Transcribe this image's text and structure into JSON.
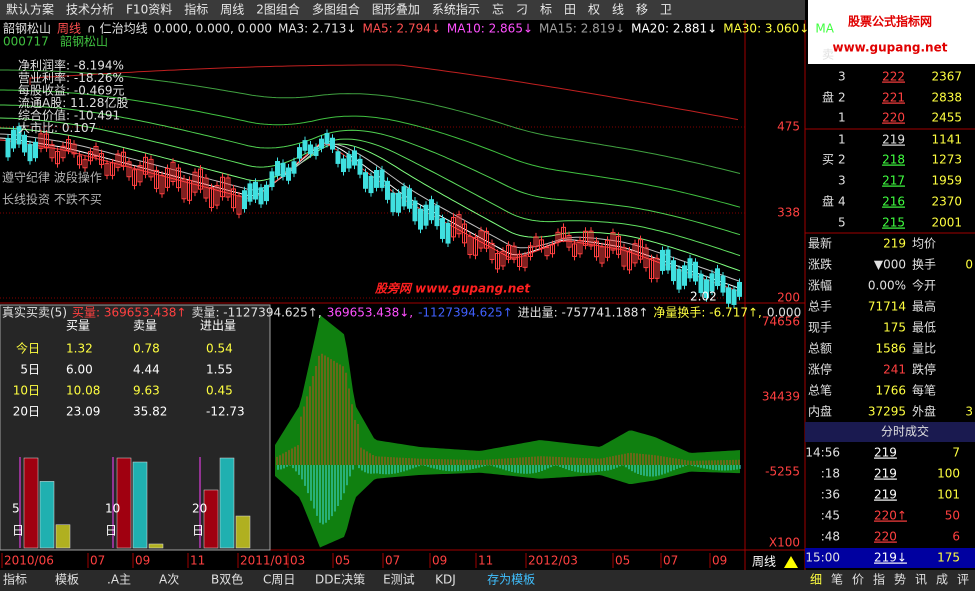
{
  "toolbar": [
    "默认方案",
    "技术分析",
    "F10资料",
    "指标",
    "周线",
    "2图组合",
    "多图组合",
    "图形叠加",
    "系统指示",
    "忘",
    "刁",
    "标",
    "田",
    "权",
    "线",
    "移",
    "卫"
  ],
  "watermark": {
    "title": "股票公式指标网",
    "url": "www.gupang.net"
  },
  "main_chart": {
    "header": [
      {
        "text": "韶钢松山",
        "color": "#e0e0e0"
      },
      {
        "text": "周线",
        "color": "#ff5050"
      },
      {
        "text": "∩ 仁治均线",
        "color": "#e0e0e0"
      },
      {
        "text": "0.000, 0.000, 0.000",
        "color": "#e0e0e0"
      },
      {
        "text": "MA3: 2.713↓",
        "color": "#e0e0e0"
      },
      {
        "text": "MA5: 2.794↓",
        "color": "#ff5050"
      },
      {
        "text": "MA10: 2.865↓",
        "color": "#ff50ff"
      },
      {
        "text": "MA15: 2.819↓",
        "color": "#a0a0a0"
      },
      {
        "text": "MA20: 2.881↓",
        "color": "#ffffff"
      },
      {
        "text": "MA30: 3.060↓",
        "color": "#ffff40"
      },
      {
        "text": "MA",
        "color": "#40ff40"
      }
    ],
    "code": "000717",
    "name": "韶钢松山",
    "fundamentals": [
      "净利润率: -8.194%",
      "营业利率: -18.26%",
      "每股收益: -0.469元",
      "流通A股: 11.28亿股",
      "综合价值: -10.491",
      "大市比: 0.107"
    ],
    "slogans": [
      "遵守纪律 波段操作",
      "长线投资 不跌不买"
    ],
    "price_axis": [
      "475",
      "338",
      "200"
    ],
    "last_price": "2.02"
  },
  "indicator_panel": {
    "header": [
      {
        "text": "真实买卖(5)",
        "color": "#e0e0e0"
      },
      {
        "text": "买量: 369653.438↑",
        "color": "#ff4040"
      },
      {
        "text": "卖量: -1127394.625↑,",
        "color": "#e0e0e0"
      },
      {
        "text": "369653.438↓,",
        "color": "#ff50ff"
      },
      {
        "text": "-1127394.625↑",
        "color": "#4060ff"
      },
      {
        "text": "进出量: -757741.188↑",
        "color": "#e0e0e0"
      },
      {
        "text": "净量换手: -6.717↑,",
        "color": "#ffff40"
      },
      {
        "text": "0.000",
        "color": "#e0e0e0"
      }
    ],
    "axis": [
      "74656",
      "34439",
      "-5255",
      "X100"
    ],
    "table": {
      "headers": [
        "买量",
        "卖量",
        "进出量"
      ],
      "rows": [
        [
          "今日",
          "1.32",
          "0.78",
          "0.54"
        ],
        [
          "5日",
          "6.00",
          "4.44",
          "1.55"
        ],
        [
          "10日",
          "10.08",
          "9.63",
          "0.45"
        ],
        [
          "20日",
          "23.09",
          "35.82",
          "-12.73"
        ]
      ]
    },
    "bar_labels": [
      [
        "5",
        "日"
      ],
      [
        "10",
        "日"
      ],
      [
        "20",
        "日"
      ]
    ],
    "watermark": "股旁网 www.gupang.net"
  },
  "date_axis": [
    "2010/06",
    "07",
    "09",
    "11",
    "2011/01",
    "03",
    "05",
    "07",
    "09",
    "11",
    "2012/03",
    "05",
    "07",
    "09"
  ],
  "period_button": "周线",
  "bottom_tabs": [
    "指标",
    "模板",
    ".A主",
    "A次",
    "B双色",
    "C周日",
    "DDE决策",
    "E测试",
    "KDJ",
    "存为模板"
  ],
  "order_book": {
    "sell_label": [
      "卖",
      "盘"
    ],
    "sell": [
      [
        "3",
        "222",
        "2367"
      ],
      [
        "2",
        "221",
        "2838"
      ],
      [
        "1",
        "220",
        "2455"
      ]
    ],
    "buy_label": [
      "买",
      "盘"
    ],
    "buy": [
      [
        "1",
        "219",
        "1141"
      ],
      [
        "2",
        "218",
        "1273"
      ],
      [
        "3",
        "217",
        "1959"
      ],
      [
        "4",
        "216",
        "2370"
      ],
      [
        "5",
        "215",
        "2001"
      ]
    ]
  },
  "stats": [
    [
      "最新",
      "219",
      "均价",
      ""
    ],
    [
      "涨跌",
      "▼000",
      "换手",
      "0"
    ],
    [
      "涨幅",
      "0.00%",
      "今开",
      ""
    ],
    [
      "总手",
      "71714",
      "最高",
      ""
    ],
    [
      "现手",
      "175",
      "最低",
      ""
    ],
    [
      "总额",
      "1586",
      "量比",
      ""
    ],
    [
      "涨停",
      "241",
      "跌停",
      ""
    ],
    [
      "总笔",
      "1766",
      "每笔",
      ""
    ],
    [
      "内盘",
      "37295",
      "外盘",
      "3"
    ]
  ],
  "trades": {
    "title": "分时成交",
    "rows": [
      [
        "14:56",
        "219",
        "7"
      ],
      [
        ":18",
        "219",
        "100"
      ],
      [
        ":36",
        "219",
        "101"
      ],
      [
        ":45",
        "220↑",
        "50"
      ],
      [
        ":48",
        "220",
        "6"
      ],
      [
        "15:00",
        "219↓",
        "175"
      ]
    ]
  },
  "right_tabs": [
    "细",
    "笔",
    "价",
    "指",
    "势",
    "讯",
    "成",
    "评"
  ]
}
